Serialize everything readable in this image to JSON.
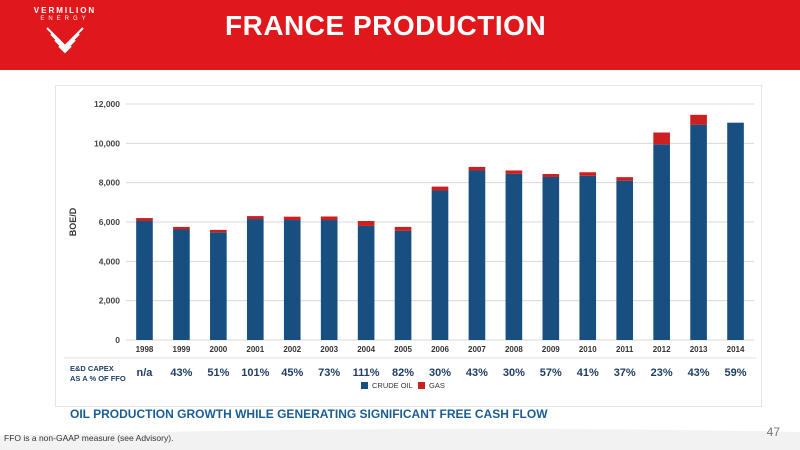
{
  "header": {
    "logo_name": "VERMILION",
    "logo_sub": "ENERGY",
    "title": "FRANCE PRODUCTION"
  },
  "colors": {
    "header_red": "#e0171b",
    "crude_oil": "#174f80",
    "gas": "#cc1f1f",
    "heading_blue": "#1a5d96"
  },
  "chart_data": {
    "type": "bar",
    "stacked": true,
    "categories": [
      "1998",
      "1999",
      "2000",
      "2001",
      "2002",
      "2003",
      "2004",
      "2005",
      "2006",
      "2007",
      "2008",
      "2009",
      "2010",
      "2011",
      "2012",
      "2013",
      "2014"
    ],
    "series": [
      {
        "name": "CRUDE OIL",
        "values": [
          6050,
          5620,
          5480,
          6150,
          6100,
          6100,
          5800,
          5550,
          7600,
          8620,
          8450,
          8290,
          8350,
          8100,
          9950,
          10950,
          11050
        ]
      },
      {
        "name": "GAS",
        "values": [
          150,
          130,
          120,
          150,
          170,
          180,
          250,
          200,
          200,
          180,
          170,
          150,
          180,
          180,
          600,
          500,
          0
        ]
      }
    ],
    "ylabel": "BOE/D",
    "ylim": [
      0,
      12000
    ],
    "yticks": [
      "0",
      "2,000",
      "4,000",
      "6,000",
      "8,000",
      "10,000",
      "12,000"
    ],
    "grid": true,
    "legend": "bottom-center",
    "table_row": {
      "label_line1": "E&D CAPEX",
      "label_line2": "AS A % OF FFO",
      "values": [
        "n/a",
        "43%",
        "51%",
        "101%",
        "45%",
        "73%",
        "111%",
        "82%",
        "30%",
        "43%",
        "30%",
        "57%",
        "41%",
        "37%",
        "23%",
        "43%",
        "59%"
      ]
    }
  },
  "bottom_heading": "OIL PRODUCTION GROWTH WHILE GENERATING SIGNIFICANT FREE CASH FLOW",
  "footnote": "FFO is a non-GAAP measure (see Advisory).",
  "page_number": "47"
}
